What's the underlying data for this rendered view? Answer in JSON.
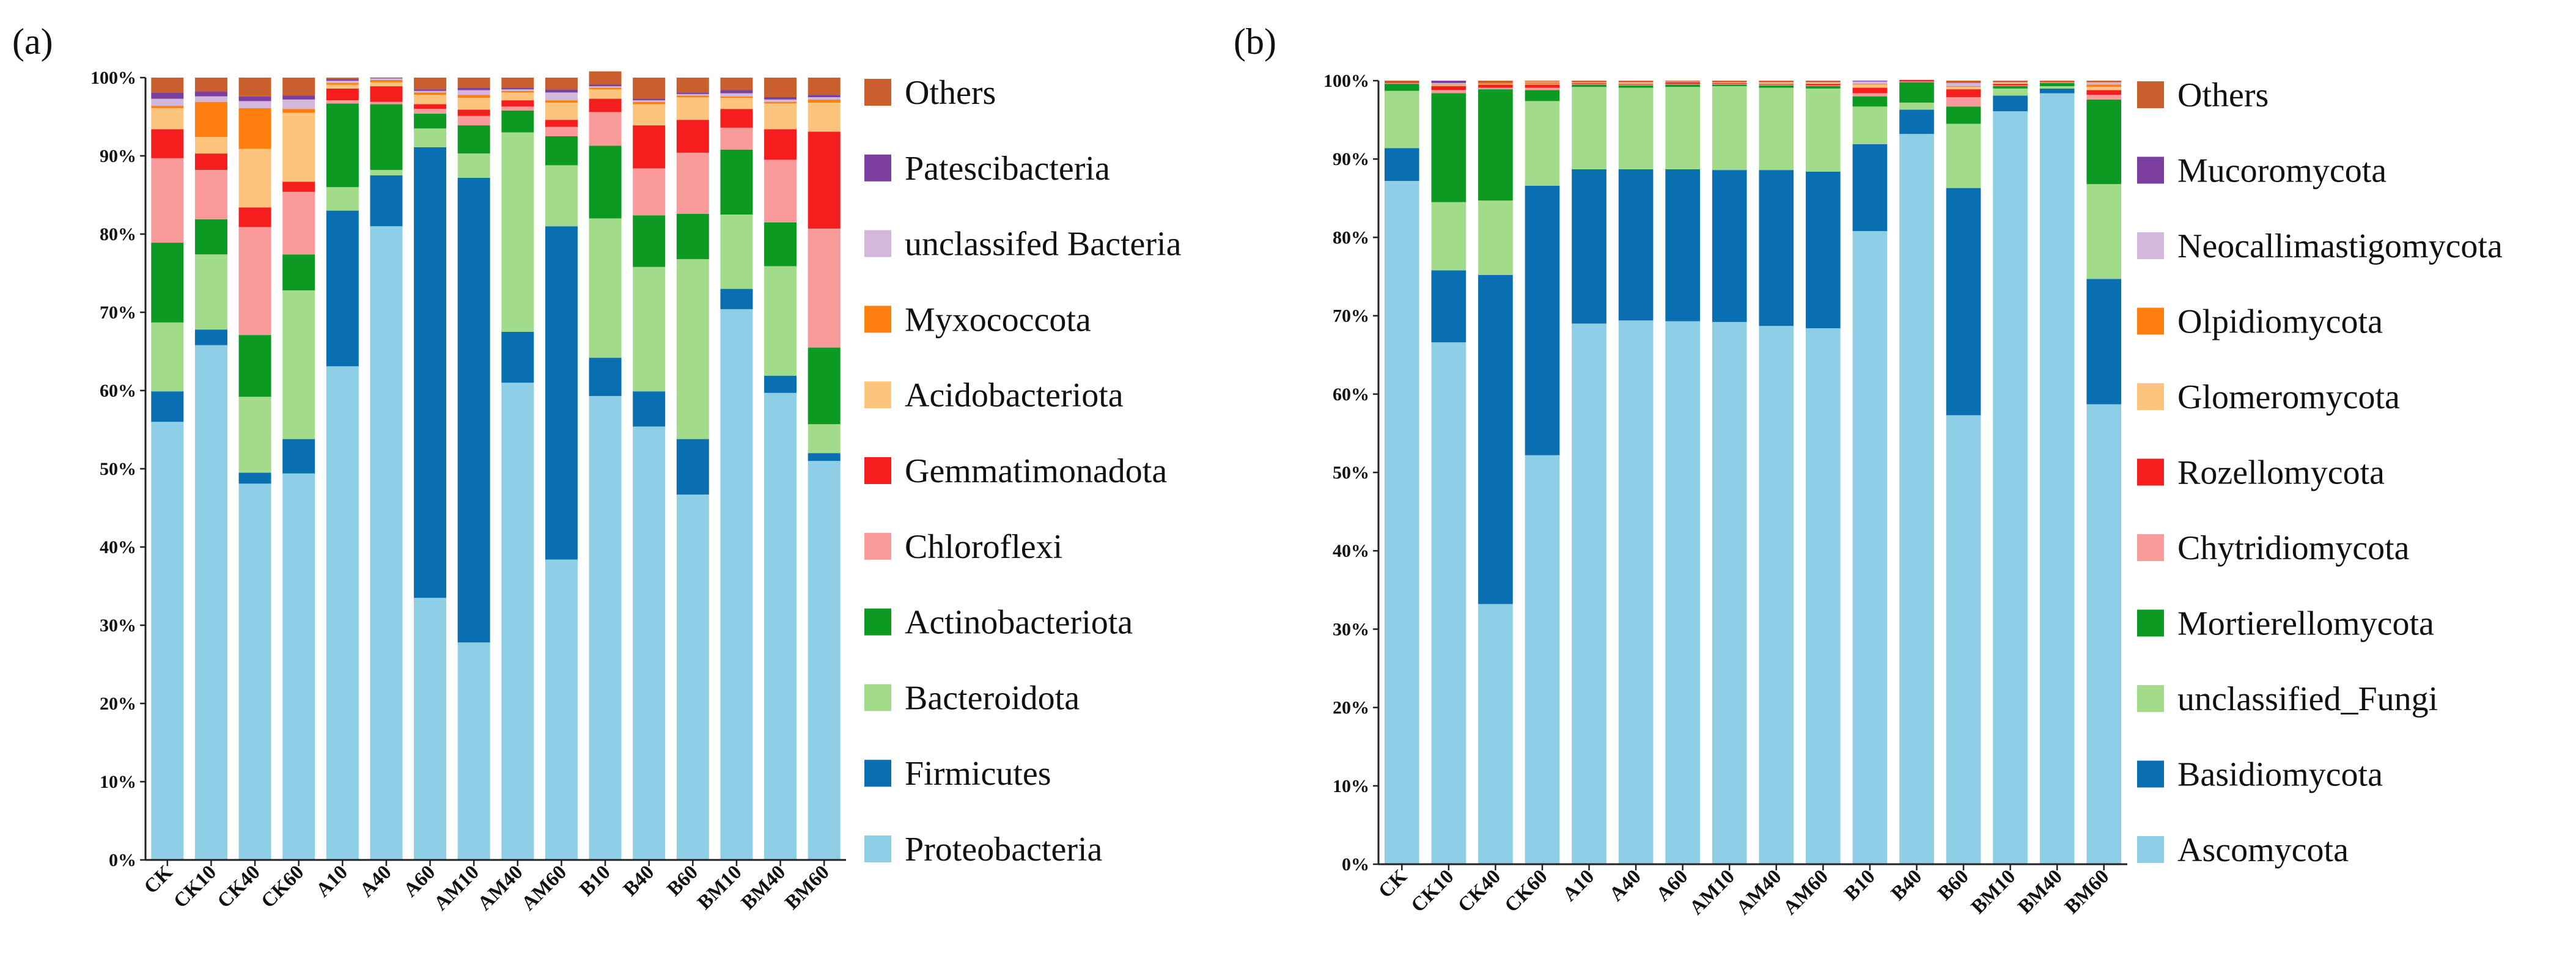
{
  "chart_data": [
    {
      "type": "bar",
      "stacked": true,
      "panel_label": "(a)",
      "title": "",
      "xlabel": "",
      "ylabel": "",
      "ylim": [
        0,
        100
      ],
      "y_ticks": [
        "0%",
        "10%",
        "20%",
        "30%",
        "40%",
        "50%",
        "60%",
        "70%",
        "80%",
        "90%",
        "100%"
      ],
      "legend_position": "right",
      "categories": [
        "CK",
        "CK10",
        "CK40",
        "CK60",
        "A10",
        "A40",
        "A60",
        "AM10",
        "AM40",
        "AM60",
        "B10",
        "B40",
        "B60",
        "BM10",
        "BM40",
        "BM60"
      ],
      "series": [
        {
          "name": "Proteobacteria",
          "color": "#8ecfe6",
          "values": [
            56.0,
            65.8,
            48.1,
            49.4,
            63.1,
            81.0,
            33.5,
            27.8,
            61.0,
            38.4,
            59.3,
            55.4,
            46.7,
            70.4,
            59.7,
            51.0
          ]
        },
        {
          "name": "Firmicutes",
          "color": "#0a6fb0",
          "values": [
            3.9,
            2.0,
            1.4,
            4.4,
            19.9,
            6.5,
            57.6,
            59.4,
            6.5,
            42.6,
            4.9,
            4.5,
            7.1,
            2.6,
            2.2,
            1.0
          ]
        },
        {
          "name": "Bacteroidota",
          "color": "#a2dc8a",
          "values": [
            8.8,
            9.6,
            9.7,
            19.0,
            3.0,
            0.7,
            2.4,
            3.1,
            25.5,
            7.8,
            17.8,
            15.9,
            23.0,
            9.5,
            14.0,
            3.7
          ]
        },
        {
          "name": "Actinobacteriota",
          "color": "#0d9a23",
          "values": [
            10.2,
            4.5,
            7.9,
            4.6,
            10.7,
            8.4,
            1.9,
            3.6,
            2.8,
            3.7,
            9.3,
            6.6,
            5.8,
            8.3,
            5.6,
            9.8
          ]
        },
        {
          "name": "Chloroflexi",
          "color": "#fa9b9b",
          "values": [
            10.8,
            6.3,
            13.8,
            8.0,
            0.4,
            0.3,
            0.6,
            1.2,
            0.5,
            1.2,
            4.3,
            6.0,
            7.8,
            2.8,
            8.0,
            15.2
          ]
        },
        {
          "name": "Gemmatimonadota",
          "color": "#f41e1e",
          "values": [
            3.7,
            2.1,
            2.5,
            1.3,
            1.5,
            2.0,
            0.6,
            0.8,
            0.8,
            0.9,
            1.7,
            5.5,
            4.2,
            2.4,
            3.9,
            12.4
          ]
        },
        {
          "name": "Acidobacteriota",
          "color": "#fcc47c",
          "values": [
            2.7,
            2.1,
            7.5,
            8.8,
            0.5,
            0.5,
            1.2,
            1.5,
            1.0,
            2.2,
            1.2,
            2.7,
            2.9,
            1.4,
            3.3,
            3.7
          ]
        },
        {
          "name": "Myxococcota",
          "color": "#ff7f0e",
          "values": [
            0.3,
            4.5,
            5.2,
            0.5,
            0.2,
            0.3,
            0.3,
            0.4,
            0.2,
            0.3,
            0.2,
            0.3,
            0.2,
            0.2,
            0.2,
            0.4
          ]
        },
        {
          "name": "unclassifed Bacteria",
          "color": "#d2b6dc",
          "values": [
            0.9,
            0.7,
            0.9,
            1.2,
            0.3,
            0.2,
            0.2,
            0.6,
            0.2,
            1.0,
            0.2,
            0.2,
            0.2,
            0.4,
            0.3,
            0.3
          ]
        },
        {
          "name": "Patescibacteria",
          "color": "#7b3fa0",
          "values": [
            0.8,
            0.6,
            0.6,
            0.5,
            0.2,
            0.1,
            0.2,
            0.3,
            0.2,
            0.4,
            0.2,
            0.2,
            0.2,
            0.4,
            0.3,
            0.3
          ]
        },
        {
          "name": "Others",
          "color": "#c95f2c",
          "values": [
            1.9,
            1.8,
            2.4,
            2.3,
            0.2,
            0.0,
            1.5,
            1.3,
            1.3,
            1.5,
            1.7,
            2.7,
            1.9,
            1.6,
            2.5,
            2.2
          ]
        }
      ]
    },
    {
      "type": "bar",
      "stacked": true,
      "panel_label": "(b)",
      "title": "",
      "xlabel": "",
      "ylabel": "",
      "ylim": [
        0,
        100
      ],
      "y_ticks": [
        "0%",
        "10%",
        "20%",
        "30%",
        "40%",
        "50%",
        "60%",
        "70%",
        "80%",
        "90%",
        "100%"
      ],
      "legend_position": "right",
      "categories": [
        "CK",
        "CK10",
        "CK40",
        "CK60",
        "A10",
        "A40",
        "A60",
        "AM10",
        "AM40",
        "AM60",
        "B10",
        "B40",
        "B60",
        "BM10",
        "BM40",
        "BM60"
      ],
      "series": [
        {
          "name": "Ascomycota",
          "color": "#8ecfe6",
          "values": [
            87.2,
            66.6,
            33.2,
            52.2,
            69.0,
            69.4,
            69.3,
            69.2,
            68.7,
            68.4,
            80.8,
            93.2,
            57.3,
            96.1,
            98.4,
            58.7
          ]
        },
        {
          "name": "Basidiomycota",
          "color": "#0a6fb0",
          "values": [
            4.2,
            9.2,
            42.0,
            34.4,
            19.7,
            19.3,
            19.4,
            19.4,
            19.9,
            20.0,
            11.1,
            3.1,
            29.0,
            2.0,
            0.6,
            16.0
          ]
        },
        {
          "name": "unclassified_Fungi",
          "color": "#a2dc8a",
          "values": [
            7.3,
            8.7,
            9.5,
            10.8,
            10.5,
            10.4,
            10.5,
            10.7,
            10.5,
            10.6,
            4.8,
            0.9,
            8.2,
            0.9,
            0.3,
            12.1
          ]
        },
        {
          "name": "Mortierellomycota",
          "color": "#0d9a23",
          "values": [
            0.9,
            13.9,
            14.2,
            1.4,
            0.3,
            0.3,
            0.3,
            0.2,
            0.3,
            0.3,
            1.3,
            2.6,
            2.2,
            0.3,
            0.4,
            10.8
          ]
        },
        {
          "name": "Chytridiomycota",
          "color": "#fa9b9b",
          "values": [
            0.1,
            0.4,
            0.2,
            0.3,
            0.1,
            0.1,
            0.1,
            0.1,
            0.1,
            0.1,
            0.4,
            0.1,
            1.2,
            0.1,
            0.1,
            0.6
          ]
        },
        {
          "name": "Rozellomycota",
          "color": "#f41e1e",
          "values": [
            0.1,
            0.5,
            0.4,
            0.4,
            0.1,
            0.1,
            0.2,
            0.1,
            0.1,
            0.2,
            0.7,
            0.2,
            1.0,
            0.2,
            0.1,
            0.6
          ]
        },
        {
          "name": "Glomeromycota",
          "color": "#fcc47c",
          "values": [
            0.0,
            0.1,
            0.1,
            0.1,
            0.1,
            0.1,
            0.0,
            0.1,
            0.1,
            0.1,
            0.4,
            0.0,
            0.3,
            0.1,
            0.0,
            0.4
          ]
        },
        {
          "name": "Olpidiomycota",
          "color": "#ff7f0e",
          "values": [
            0.0,
            0.1,
            0.1,
            0.2,
            0.0,
            0.0,
            0.0,
            0.0,
            0.0,
            0.0,
            0.1,
            0.0,
            0.1,
            0.0,
            0.0,
            0.3
          ]
        },
        {
          "name": "Neocallimastigomycota",
          "color": "#d2b6dc",
          "values": [
            0.0,
            0.2,
            0.0,
            0.1,
            0.0,
            0.1,
            0.1,
            0.0,
            0.1,
            0.1,
            0.3,
            0.0,
            0.4,
            0.1,
            0.0,
            0.3
          ]
        },
        {
          "name": "Mucoromycota",
          "color": "#7b3fa0",
          "values": [
            0.0,
            0.3,
            0.0,
            0.0,
            0.0,
            0.0,
            0.0,
            0.0,
            0.0,
            0.0,
            0.1,
            0.0,
            0.0,
            0.0,
            0.0,
            0.0
          ]
        },
        {
          "name": "Others",
          "color": "#c95f2c",
          "values": [
            0.2,
            0.0,
            0.3,
            0.1,
            0.2,
            0.2,
            0.1,
            0.2,
            0.2,
            0.2,
            0.0,
            0.0,
            0.3,
            0.2,
            0.1,
            0.2
          ]
        }
      ]
    }
  ]
}
